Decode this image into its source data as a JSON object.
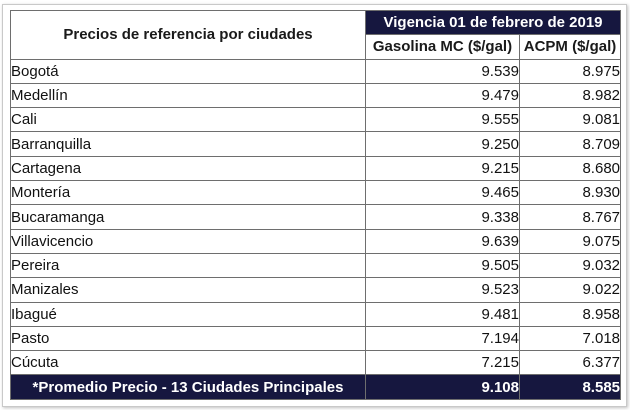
{
  "table": {
    "title": "Precios de referencia por ciudades",
    "vigencia": "Vigencia 01 de febrero de 2019",
    "columns": {
      "gasolina": "Gasolina MC ($/gal)",
      "acpm": "ACPM ($/gal)"
    },
    "rows": [
      {
        "city": "Bogotá",
        "gasolina": "9.539",
        "acpm": "8.975"
      },
      {
        "city": "Medellín",
        "gasolina": "9.479",
        "acpm": "8.982"
      },
      {
        "city": "Cali",
        "gasolina": "9.555",
        "acpm": "9.081"
      },
      {
        "city": "Barranquilla",
        "gasolina": "9.250",
        "acpm": "8.709"
      },
      {
        "city": "Cartagena",
        "gasolina": "9.215",
        "acpm": "8.680"
      },
      {
        "city": "Montería",
        "gasolina": "9.465",
        "acpm": "8.930"
      },
      {
        "city": "Bucaramanga",
        "gasolina": "9.338",
        "acpm": "8.767"
      },
      {
        "city": "Villavicencio",
        "gasolina": "9.639",
        "acpm": "9.075"
      },
      {
        "city": "Pereira",
        "gasolina": "9.505",
        "acpm": "9.032"
      },
      {
        "city": "Manizales",
        "gasolina": "9.523",
        "acpm": "9.022"
      },
      {
        "city": "Ibagué",
        "gasolina": "9.481",
        "acpm": "8.958"
      },
      {
        "city": "Pasto",
        "gasolina": "7.194",
        "acpm": "7.018"
      },
      {
        "city": "Cúcuta",
        "gasolina": "7.215",
        "acpm": "6.377"
      }
    ],
    "average": {
      "label": "*Promedio Precio - 13 Ciudades Principales",
      "gasolina": "9.108",
      "acpm": "8.585"
    },
    "colors": {
      "header_bg": "#16173f",
      "header_text": "#ffffff",
      "border": "#6e6e6e"
    }
  }
}
